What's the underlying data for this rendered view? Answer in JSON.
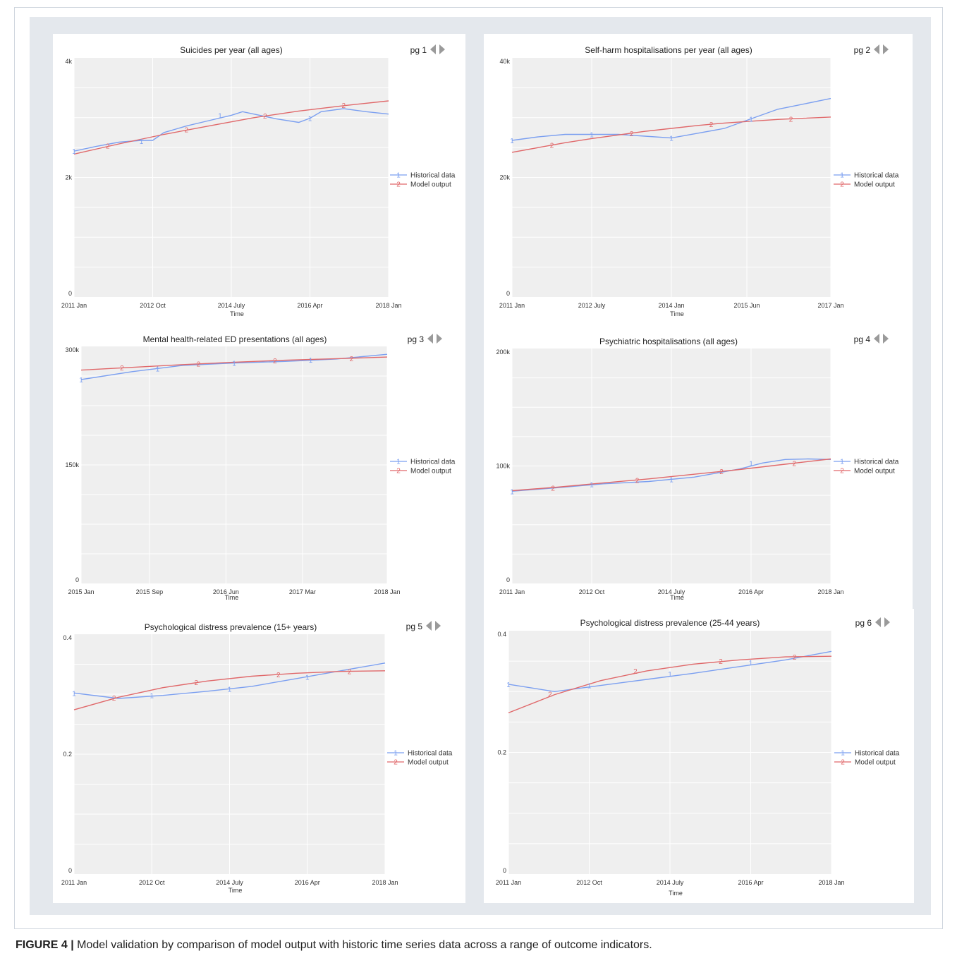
{
  "figure": {
    "caption_label": "FIGURE 4 |",
    "caption_text": " Model validation by comparison of model output with historic time series data across a range of outcome indicators."
  },
  "colors": {
    "historical": "#7b9ff0",
    "model": "#e0686a",
    "plot_bg": "#efefef",
    "grid": "#ffffff",
    "arrow": "#9a9a9a"
  },
  "legend": {
    "historical_marker": "1",
    "model_marker": "2"
  },
  "chart_data": [
    {
      "type": "line",
      "title": "Suicides per year (all ages)",
      "page_label": "pg 1",
      "xlabel": "Time",
      "ylabel": "",
      "x_start": 2011.0,
      "x_end": 2018.0,
      "x_ticks": [
        {
          "x": 2011.0,
          "label": "2011 Jan"
        },
        {
          "x": 2012.75,
          "label": "2012 Oct"
        },
        {
          "x": 2014.5,
          "label": "2014 July"
        },
        {
          "x": 2016.25,
          "label": "2016 Apr"
        },
        {
          "x": 2018.0,
          "label": "2018 Jan"
        }
      ],
      "ylim": [
        0,
        4000
      ],
      "y_ticks": [
        {
          "y": 0,
          "label": "0"
        },
        {
          "y": 2000,
          "label": "2k"
        },
        {
          "y": 4000,
          "label": "4k"
        }
      ],
      "grid": true,
      "legend_position": "right",
      "series": [
        {
          "name": "Historical data",
          "x": [
            2011.0,
            2011.5,
            2012.0,
            2012.5,
            2012.75,
            2013.0,
            2013.5,
            2014.0,
            2014.5,
            2014.75,
            2015.0,
            2015.5,
            2016.0,
            2016.25,
            2016.5,
            2017.0,
            2017.5,
            2018.0
          ],
          "y": [
            2440,
            2520,
            2590,
            2620,
            2620,
            2750,
            2860,
            2950,
            3040,
            3100,
            3060,
            2980,
            2920,
            2990,
            3100,
            3150,
            3100,
            3060
          ]
        },
        {
          "name": "Model output",
          "x": [
            2011.0,
            2012.0,
            2013.0,
            2014.0,
            2015.0,
            2016.0,
            2017.0,
            2018.0
          ],
          "y": [
            2390,
            2560,
            2720,
            2860,
            3000,
            3110,
            3200,
            3280
          ]
        }
      ],
      "markers": [
        {
          "series": 0,
          "x": 2011.0,
          "y": 2440
        },
        {
          "series": 0,
          "x": 2012.5,
          "y": 2610
        },
        {
          "series": 0,
          "x": 2014.25,
          "y": 3040
        },
        {
          "series": 0,
          "x": 2016.25,
          "y": 2990
        },
        {
          "series": 1,
          "x": 2011.75,
          "y": 2530
        },
        {
          "series": 1,
          "x": 2013.5,
          "y": 2800
        },
        {
          "series": 1,
          "x": 2015.25,
          "y": 3030
        },
        {
          "series": 1,
          "x": 2017.0,
          "y": 3210
        }
      ]
    },
    {
      "type": "line",
      "title": "Self-harm hospitalisations per year (all ages)",
      "page_label": "pg 2",
      "xlabel": "Time",
      "ylabel": "",
      "x_start": 2011.0,
      "x_end": 2017.0,
      "x_ticks": [
        {
          "x": 2011.0,
          "label": "2011 Jan"
        },
        {
          "x": 2012.5,
          "label": "2012 July"
        },
        {
          "x": 2014.0,
          "label": "2014 Jan"
        },
        {
          "x": 2015.42,
          "label": "2015 Jun"
        },
        {
          "x": 2017.0,
          "label": "2017 Jan"
        }
      ],
      "ylim": [
        0,
        40000
      ],
      "y_ticks": [
        {
          "y": 0,
          "label": "0"
        },
        {
          "y": 20000,
          "label": "20k"
        },
        {
          "y": 40000,
          "label": "40k"
        }
      ],
      "grid": true,
      "legend_position": "right",
      "series": [
        {
          "name": "Historical data",
          "x": [
            2011.0,
            2011.5,
            2012.0,
            2012.5,
            2013.0,
            2013.5,
            2014.0,
            2014.5,
            2015.0,
            2015.5,
            2016.0,
            2016.5,
            2017.0
          ],
          "y": [
            26200,
            26800,
            27200,
            27200,
            27200,
            26900,
            26600,
            27400,
            28200,
            29800,
            31400,
            32300,
            33200
          ]
        },
        {
          "name": "Model output",
          "x": [
            2011.0,
            2011.5,
            2012.0,
            2012.5,
            2013.0,
            2013.5,
            2014.0,
            2014.5,
            2015.0,
            2015.5,
            2016.0,
            2016.5,
            2017.0
          ],
          "y": [
            24200,
            25000,
            25800,
            26500,
            27100,
            27700,
            28200,
            28700,
            29100,
            29400,
            29700,
            29900,
            30100
          ]
        }
      ],
      "markers": [
        {
          "series": 0,
          "x": 2011.0,
          "y": 26200
        },
        {
          "series": 0,
          "x": 2012.5,
          "y": 27200
        },
        {
          "series": 0,
          "x": 2014.0,
          "y": 26600
        },
        {
          "series": 0,
          "x": 2015.5,
          "y": 29800
        },
        {
          "series": 1,
          "x": 2011.75,
          "y": 25400
        },
        {
          "series": 1,
          "x": 2013.25,
          "y": 27400
        },
        {
          "series": 1,
          "x": 2014.75,
          "y": 28900
        },
        {
          "series": 1,
          "x": 2016.25,
          "y": 29800
        }
      ]
    },
    {
      "type": "line",
      "title": "Mental health-related ED presentations (all ages)",
      "page_label": "pg 3",
      "xlabel": "Time",
      "ylabel": "",
      "x_start": 2015.0,
      "x_end": 2018.0,
      "x_ticks": [
        {
          "x": 2015.0,
          "label": "2015 Jan"
        },
        {
          "x": 2015.67,
          "label": "2015 Sep"
        },
        {
          "x": 2016.42,
          "label": "2016 Jun"
        },
        {
          "x": 2017.17,
          "label": "2017 Mar"
        },
        {
          "x": 2018.0,
          "label": "2018 Jan"
        }
      ],
      "ylim": [
        0,
        300000
      ],
      "y_ticks": [
        {
          "y": 0,
          "label": "0"
        },
        {
          "y": 150000,
          "label": "150k"
        },
        {
          "y": 300000,
          "label": "300k"
        }
      ],
      "grid": true,
      "legend_position": "right",
      "series": [
        {
          "name": "Historical data",
          "x": [
            2015.0,
            2015.5,
            2016.0,
            2016.5,
            2017.0,
            2017.5,
            2018.0
          ],
          "y": [
            258000,
            268000,
            276000,
            279000,
            281000,
            284000,
            290000
          ]
        },
        {
          "name": "Model output",
          "x": [
            2015.0,
            2015.5,
            2016.0,
            2016.5,
            2017.0,
            2017.5,
            2018.0
          ],
          "y": [
            270000,
            273500,
            277000,
            280000,
            282500,
            284500,
            286500
          ]
        }
      ],
      "markers": [
        {
          "series": 0,
          "x": 2015.0,
          "y": 258000
        },
        {
          "series": 0,
          "x": 2015.75,
          "y": 272000
        },
        {
          "series": 0,
          "x": 2016.5,
          "y": 279000
        },
        {
          "series": 0,
          "x": 2017.25,
          "y": 283000
        },
        {
          "series": 1,
          "x": 2015.4,
          "y": 273000
        },
        {
          "series": 1,
          "x": 2016.15,
          "y": 278000
        },
        {
          "series": 1,
          "x": 2016.9,
          "y": 282000
        },
        {
          "series": 1,
          "x": 2017.65,
          "y": 285000
        }
      ]
    },
    {
      "type": "line",
      "title": "Psychiatric hospitalisations (all ages)",
      "page_label": "pg 4",
      "xlabel": "Time",
      "ylabel": "",
      "x_start": 2011.0,
      "x_end": 2018.0,
      "x_ticks": [
        {
          "x": 2011.0,
          "label": "2011 Jan"
        },
        {
          "x": 2012.75,
          "label": "2012 Oct"
        },
        {
          "x": 2014.5,
          "label": "2014 July"
        },
        {
          "x": 2016.25,
          "label": "2016 Apr"
        },
        {
          "x": 2018.0,
          "label": "2018 Jan"
        }
      ],
      "ylim": [
        0,
        200000
      ],
      "y_ticks": [
        {
          "y": 0,
          "label": "0"
        },
        {
          "y": 100000,
          "label": "100k"
        },
        {
          "y": 200000,
          "label": "200k"
        }
      ],
      "grid": true,
      "legend_position": "right",
      "series": [
        {
          "name": "Historical data",
          "x": [
            2011.0,
            2012.0,
            2013.0,
            2014.0,
            2015.0,
            2016.0,
            2016.5,
            2017.0,
            2017.5,
            2018.0
          ],
          "y": [
            78500,
            81500,
            84800,
            86800,
            90500,
            97500,
            102500,
            105500,
            106000,
            105500
          ]
        },
        {
          "name": "Model output",
          "x": [
            2011.0,
            2012.0,
            2013.0,
            2014.0,
            2015.0,
            2016.0,
            2017.0,
            2018.0
          ],
          "y": [
            79000,
            82000,
            85500,
            89000,
            93000,
            97000,
            101500,
            106000
          ]
        }
      ],
      "markers": [
        {
          "series": 0,
          "x": 2011.0,
          "y": 78500
        },
        {
          "series": 0,
          "x": 2012.75,
          "y": 84500
        },
        {
          "series": 0,
          "x": 2014.5,
          "y": 88500
        },
        {
          "series": 0,
          "x": 2016.25,
          "y": 102500
        },
        {
          "series": 1,
          "x": 2011.9,
          "y": 81500
        },
        {
          "series": 1,
          "x": 2013.75,
          "y": 88000
        },
        {
          "series": 1,
          "x": 2015.6,
          "y": 95500
        },
        {
          "series": 1,
          "x": 2017.2,
          "y": 102500
        }
      ]
    },
    {
      "type": "line",
      "title": "Psychological distress prevalence (15+ years)",
      "page_label": "pg 5",
      "xlabel": "Time",
      "ylabel": "",
      "x_start": 2011.0,
      "x_end": 2018.0,
      "x_ticks": [
        {
          "x": 2011.0,
          "label": "2011 Jan"
        },
        {
          "x": 2012.75,
          "label": "2012 Oct"
        },
        {
          "x": 2014.5,
          "label": "2014 July"
        },
        {
          "x": 2016.25,
          "label": "2016 Apr"
        },
        {
          "x": 2018.0,
          "label": "2018 Jan"
        }
      ],
      "ylim": [
        0,
        0.4
      ],
      "y_ticks": [
        {
          "y": 0,
          "label": "0"
        },
        {
          "y": 0.2,
          "label": "0.2"
        },
        {
          "y": 0.4,
          "label": "0.4"
        }
      ],
      "grid": true,
      "legend_position": "right",
      "series": [
        {
          "name": "Historical data",
          "x": [
            2011.0,
            2012.0,
            2013.0,
            2014.0,
            2015.0,
            2016.0,
            2017.0,
            2018.0
          ],
          "y": [
            0.302,
            0.293,
            0.298,
            0.305,
            0.313,
            0.326,
            0.339,
            0.352
          ]
        },
        {
          "name": "Model output",
          "x": [
            2011.0,
            2012.0,
            2013.0,
            2014.0,
            2015.0,
            2016.0,
            2017.0,
            2018.0
          ],
          "y": [
            0.274,
            0.295,
            0.311,
            0.322,
            0.33,
            0.335,
            0.338,
            0.339
          ]
        }
      ],
      "markers": [
        {
          "series": 0,
          "x": 2011.0,
          "y": 0.302
        },
        {
          "series": 0,
          "x": 2012.75,
          "y": 0.298
        },
        {
          "series": 0,
          "x": 2014.5,
          "y": 0.309
        },
        {
          "series": 0,
          "x": 2016.25,
          "y": 0.329
        },
        {
          "series": 1,
          "x": 2011.9,
          "y": 0.294
        },
        {
          "series": 1,
          "x": 2013.75,
          "y": 0.32
        },
        {
          "series": 1,
          "x": 2015.6,
          "y": 0.333
        },
        {
          "series": 1,
          "x": 2017.2,
          "y": 0.338
        }
      ]
    },
    {
      "type": "line",
      "title": "Psychological distress prevalence (25-44 years)",
      "page_label": "pg 6",
      "xlabel": "Time",
      "ylabel": "",
      "x_start": 2011.0,
      "x_end": 2018.0,
      "x_ticks": [
        {
          "x": 2011.0,
          "label": "2011 Jan"
        },
        {
          "x": 2012.75,
          "label": "2012 Oct"
        },
        {
          "x": 2014.5,
          "label": "2014 July"
        },
        {
          "x": 2016.25,
          "label": "2016 Apr"
        },
        {
          "x": 2018.0,
          "label": "2018 Jan"
        }
      ],
      "ylim": [
        0,
        0.4
      ],
      "y_ticks": [
        {
          "y": 0,
          "label": "0"
        },
        {
          "y": 0.2,
          "label": "0.2"
        },
        {
          "y": 0.4,
          "label": "0.4"
        }
      ],
      "grid": true,
      "legend_position": "right",
      "series": [
        {
          "name": "Historical data",
          "x": [
            2011.0,
            2012.0,
            2013.0,
            2014.0,
            2015.0,
            2016.0,
            2017.0,
            2018.0
          ],
          "y": [
            0.312,
            0.3,
            0.31,
            0.32,
            0.33,
            0.341,
            0.352,
            0.366
          ]
        },
        {
          "name": "Model output",
          "x": [
            2011.0,
            2012.0,
            2013.0,
            2014.0,
            2015.0,
            2016.0,
            2017.0,
            2018.0
          ],
          "y": [
            0.265,
            0.295,
            0.318,
            0.334,
            0.345,
            0.352,
            0.357,
            0.358
          ]
        }
      ],
      "markers": [
        {
          "series": 0,
          "x": 2011.0,
          "y": 0.312
        },
        {
          "series": 0,
          "x": 2012.75,
          "y": 0.31
        },
        {
          "series": 0,
          "x": 2014.5,
          "y": 0.329
        },
        {
          "series": 0,
          "x": 2016.25,
          "y": 0.348
        },
        {
          "series": 1,
          "x": 2011.9,
          "y": 0.296
        },
        {
          "series": 1,
          "x": 2013.75,
          "y": 0.334
        },
        {
          "series": 1,
          "x": 2015.6,
          "y": 0.35
        },
        {
          "series": 1,
          "x": 2017.2,
          "y": 0.357
        }
      ]
    }
  ]
}
